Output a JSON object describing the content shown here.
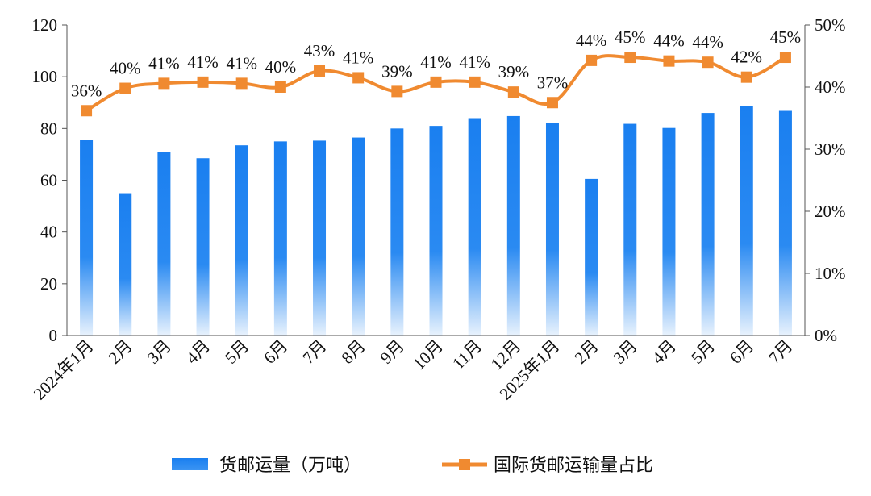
{
  "chart_data": {
    "type": "bar+line",
    "categories": [
      "2024年1月",
      "2月",
      "3月",
      "4月",
      "5月",
      "6月",
      "7月",
      "8月",
      "9月",
      "10月",
      "11月",
      "12月",
      "2025年1月",
      "2月",
      "3月",
      "4月",
      "5月",
      "6月",
      "7月"
    ],
    "series": [
      {
        "name": "货邮运量（万吨）",
        "type": "bar",
        "axis": "left",
        "values": [
          75.5,
          55,
          71,
          68.5,
          73.5,
          75,
          75.3,
          76.5,
          80,
          81,
          84,
          84.8,
          82.2,
          60.5,
          81.8,
          80.2,
          86,
          88.8,
          86.8
        ]
      },
      {
        "name": "国际货邮运输量占比",
        "type": "line",
        "axis": "right",
        "values": [
          36,
          40,
          41,
          41,
          41,
          40,
          43,
          41,
          39,
          41,
          41,
          39,
          37,
          44,
          45,
          44,
          44,
          42,
          45
        ],
        "point_values": [
          36.2,
          39.8,
          40.6,
          40.8,
          40.6,
          40.0,
          42.6,
          41.5,
          39.3,
          40.8,
          40.8,
          39.2,
          37.5,
          44.3,
          44.8,
          44.2,
          44.0,
          41.6,
          44.8
        ],
        "labels": [
          "36%",
          "40%",
          "41%",
          "41%",
          "41%",
          "40%",
          "43%",
          "41%",
          "39%",
          "41%",
          "41%",
          "39%",
          "37%",
          "44%",
          "45%",
          "44%",
          "44%",
          "42%",
          "45%"
        ]
      }
    ],
    "y_left": {
      "range": [
        0,
        120
      ],
      "ticks": [
        "0",
        "20",
        "40",
        "60",
        "80",
        "100",
        "120"
      ]
    },
    "y_right": {
      "range": [
        0,
        50
      ],
      "ticks": [
        "0%",
        "10%",
        "20%",
        "30%",
        "40%",
        "50%"
      ]
    },
    "legend_position": "bottom",
    "colors": {
      "bar": "#1a7ff0",
      "line": "#f08a30"
    }
  }
}
